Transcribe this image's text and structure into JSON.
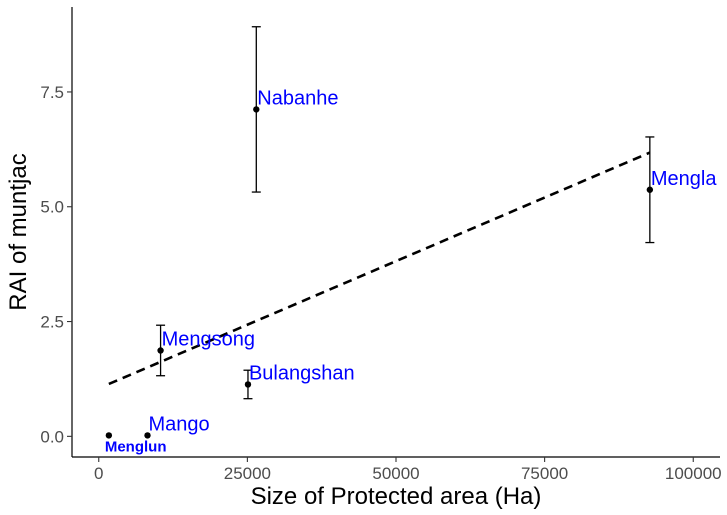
{
  "chart_data": {
    "type": "scatter",
    "title": "",
    "xlabel": "Size of Protected area (Ha)",
    "ylabel": "RAI of muntjac",
    "xlim": [
      -4500,
      104500
    ],
    "ylim": [
      -0.45,
      9.35
    ],
    "x_ticks": [
      0,
      25000,
      50000,
      75000,
      100000
    ],
    "x_tick_labels": [
      "0",
      "25000",
      "50000",
      "75000",
      "100000"
    ],
    "y_ticks": [
      0.0,
      2.5,
      5.0,
      7.5
    ],
    "y_tick_labels": [
      "0.0",
      "2.5",
      "5.0",
      "7.5"
    ],
    "grid": false,
    "label_color": "#0000ff",
    "points": [
      {
        "label": "Nabanhe",
        "x": 26500,
        "y": 7.12,
        "err_low": 5.32,
        "err_high": 8.92,
        "label_style": "normal"
      },
      {
        "label": "Mengla",
        "x": 92700,
        "y": 5.37,
        "err_low": 4.22,
        "err_high": 6.52,
        "label_style": "normal"
      },
      {
        "label": "Mengsong",
        "x": 10400,
        "y": 1.87,
        "err_low": 1.32,
        "err_high": 2.42,
        "label_style": "normal"
      },
      {
        "label": "Bulangshan",
        "x": 25100,
        "y": 1.13,
        "err_low": 0.82,
        "err_high": 1.44,
        "label_style": "normal"
      },
      {
        "label": "Mango",
        "x": 8200,
        "y": 0.02,
        "err_low": null,
        "err_high": null,
        "label_style": "normal"
      },
      {
        "label": "Menglun",
        "x": 1700,
        "y": 0.02,
        "err_low": null,
        "err_high": null,
        "label_style": "bold"
      }
    ],
    "fit_line": {
      "style": "dashed",
      "color": "#000000",
      "x": [
        1700,
        92700
      ],
      "y": [
        1.14,
        6.18
      ]
    }
  }
}
